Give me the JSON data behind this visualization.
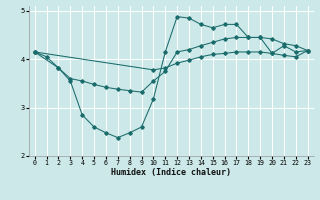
{
  "xlabel": "Humidex (Indice chaleur)",
  "bg_color": "#cce8e8",
  "grid_color": "#ffffff",
  "line_color": "#1a6b6b",
  "xlim": [
    -0.5,
    23.5
  ],
  "ylim": [
    2,
    5.1
  ],
  "yticks": [
    2,
    3,
    4,
    5
  ],
  "xticks": [
    0,
    1,
    2,
    3,
    4,
    5,
    6,
    7,
    8,
    9,
    10,
    11,
    12,
    13,
    14,
    15,
    16,
    17,
    18,
    19,
    20,
    21,
    22,
    23
  ],
  "line1_x": [
    0,
    1,
    2,
    3,
    4,
    5,
    6,
    7,
    8,
    9,
    10,
    11,
    12,
    13,
    14,
    15,
    16,
    17,
    18,
    19,
    20,
    21,
    22,
    23
  ],
  "line1_y": [
    4.15,
    4.05,
    3.82,
    3.55,
    2.85,
    2.6,
    2.48,
    2.38,
    2.48,
    2.6,
    3.18,
    4.15,
    4.88,
    4.85,
    4.72,
    4.65,
    4.72,
    4.72,
    4.45,
    4.45,
    4.12,
    4.28,
    4.15,
    4.18
  ],
  "line2_x": [
    0,
    2,
    3,
    4,
    5,
    6,
    7,
    8,
    9,
    10,
    11,
    12,
    13,
    14,
    15,
    16,
    17,
    18,
    19,
    20,
    21,
    22,
    23
  ],
  "line2_y": [
    4.15,
    3.82,
    3.6,
    3.55,
    3.48,
    3.42,
    3.38,
    3.35,
    3.32,
    3.55,
    3.75,
    4.15,
    4.2,
    4.28,
    4.35,
    4.42,
    4.45,
    4.45,
    4.45,
    4.42,
    4.32,
    4.28,
    4.18
  ],
  "line3_x": [
    0,
    10,
    11,
    12,
    13,
    14,
    15,
    16,
    17,
    18,
    19,
    20,
    21,
    22,
    23
  ],
  "line3_y": [
    4.15,
    3.78,
    3.82,
    3.92,
    3.98,
    4.05,
    4.1,
    4.12,
    4.15,
    4.15,
    4.15,
    4.12,
    4.08,
    4.05,
    4.18
  ]
}
